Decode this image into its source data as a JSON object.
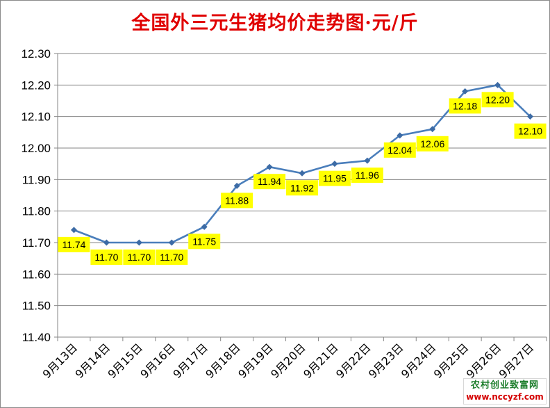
{
  "chart_data": {
    "type": "line",
    "title": "全国外三元生猪均价走势图·元/斤",
    "xlabel": "",
    "ylabel": "",
    "categories": [
      "9月13日",
      "9月14日",
      "9月15日",
      "9月16日",
      "9月17日",
      "9月18日",
      "9月19日",
      "9月20日",
      "9月21日",
      "9月22日",
      "9月23日",
      "9月24日",
      "9月25日",
      "9月26日",
      "9月27日"
    ],
    "series": [
      {
        "values": [
          11.74,
          11.7,
          11.7,
          11.7,
          11.75,
          11.88,
          11.94,
          11.92,
          11.95,
          11.96,
          12.04,
          12.06,
          12.18,
          12.2,
          12.1
        ]
      }
    ],
    "data_labels": [
      "11.74",
      "11.70",
      "11.70",
      "11.70",
      "11.75",
      "11.88",
      "11.94",
      "11.92",
      "11.95",
      "11.96",
      "12.04",
      "12.06",
      "12.18",
      "12.20",
      "12.10"
    ],
    "ylim": [
      11.4,
      12.3
    ],
    "yticks": [
      "11.40",
      "11.50",
      "11.60",
      "11.70",
      "11.80",
      "11.90",
      "12.00",
      "12.10",
      "12.20",
      "12.30"
    ],
    "grid": true,
    "legend": "none",
    "colors": {
      "line": "#4a7ebb",
      "marker": "#3c6ba5",
      "label_bg": "#ffff00",
      "title": "#e00000",
      "grid": "#868686"
    }
  },
  "watermark": {
    "line1": "农村创业致富网",
    "line2": "www.nccyzf.com"
  }
}
